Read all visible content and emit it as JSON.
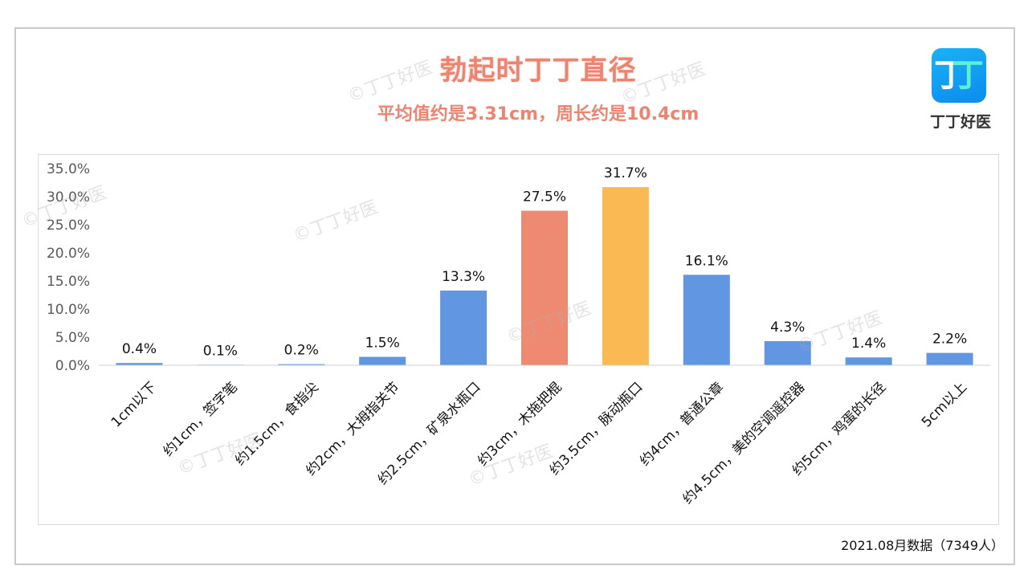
{
  "header": {
    "title": "勃起时丁丁直径",
    "subtitle": "平均值约是3.31cm，周长约是10.4cm"
  },
  "logo": {
    "glyph": "丁",
    "text": "丁丁好医"
  },
  "watermark": "©丁丁好医",
  "footer": "2021.08月数据（7349人）",
  "colors": {
    "default_bar": "#6196e2",
    "highlight_1": "#ef8a72",
    "highlight_2": "#fbb954",
    "title": "#ee8470"
  },
  "chart_data": {
    "type": "bar",
    "title": "勃起时丁丁直径",
    "subtitle": "平均值约是3.31cm，周长约是10.4cm",
    "categories": [
      "1cm以下",
      "约1cm，签字笔",
      "约1.5cm，食指尖",
      "约2cm，大拇指关节",
      "约2.5cm，矿泉水瓶口",
      "约3cm，木拖把棍",
      "约3.5cm，脉动瓶口",
      "约4cm，普通公章",
      "约4.5cm，美的空调遥控器",
      "约5cm，鸡蛋的长径",
      "5cm以上"
    ],
    "values": [
      0.4,
      0.1,
      0.2,
      1.5,
      13.3,
      27.5,
      31.7,
      16.1,
      4.3,
      1.4,
      2.2
    ],
    "value_labels": [
      "0.4%",
      "0.1%",
      "0.2%",
      "1.5%",
      "13.3%",
      "27.5%",
      "31.7%",
      "16.1%",
      "4.3%",
      "1.4%",
      "2.2%"
    ],
    "bar_colors": [
      "#6196e2",
      "#6196e2",
      "#6196e2",
      "#6196e2",
      "#6196e2",
      "#ef8a72",
      "#fbb954",
      "#6196e2",
      "#6196e2",
      "#6196e2",
      "#6196e2"
    ],
    "yticks": [
      "0.0%",
      "5.0%",
      "10.0%",
      "15.0%",
      "20.0%",
      "25.0%",
      "30.0%",
      "35.0%"
    ],
    "ylim": [
      0,
      35
    ],
    "grid": false,
    "legend": "none",
    "xlabel": "",
    "ylabel": ""
  }
}
